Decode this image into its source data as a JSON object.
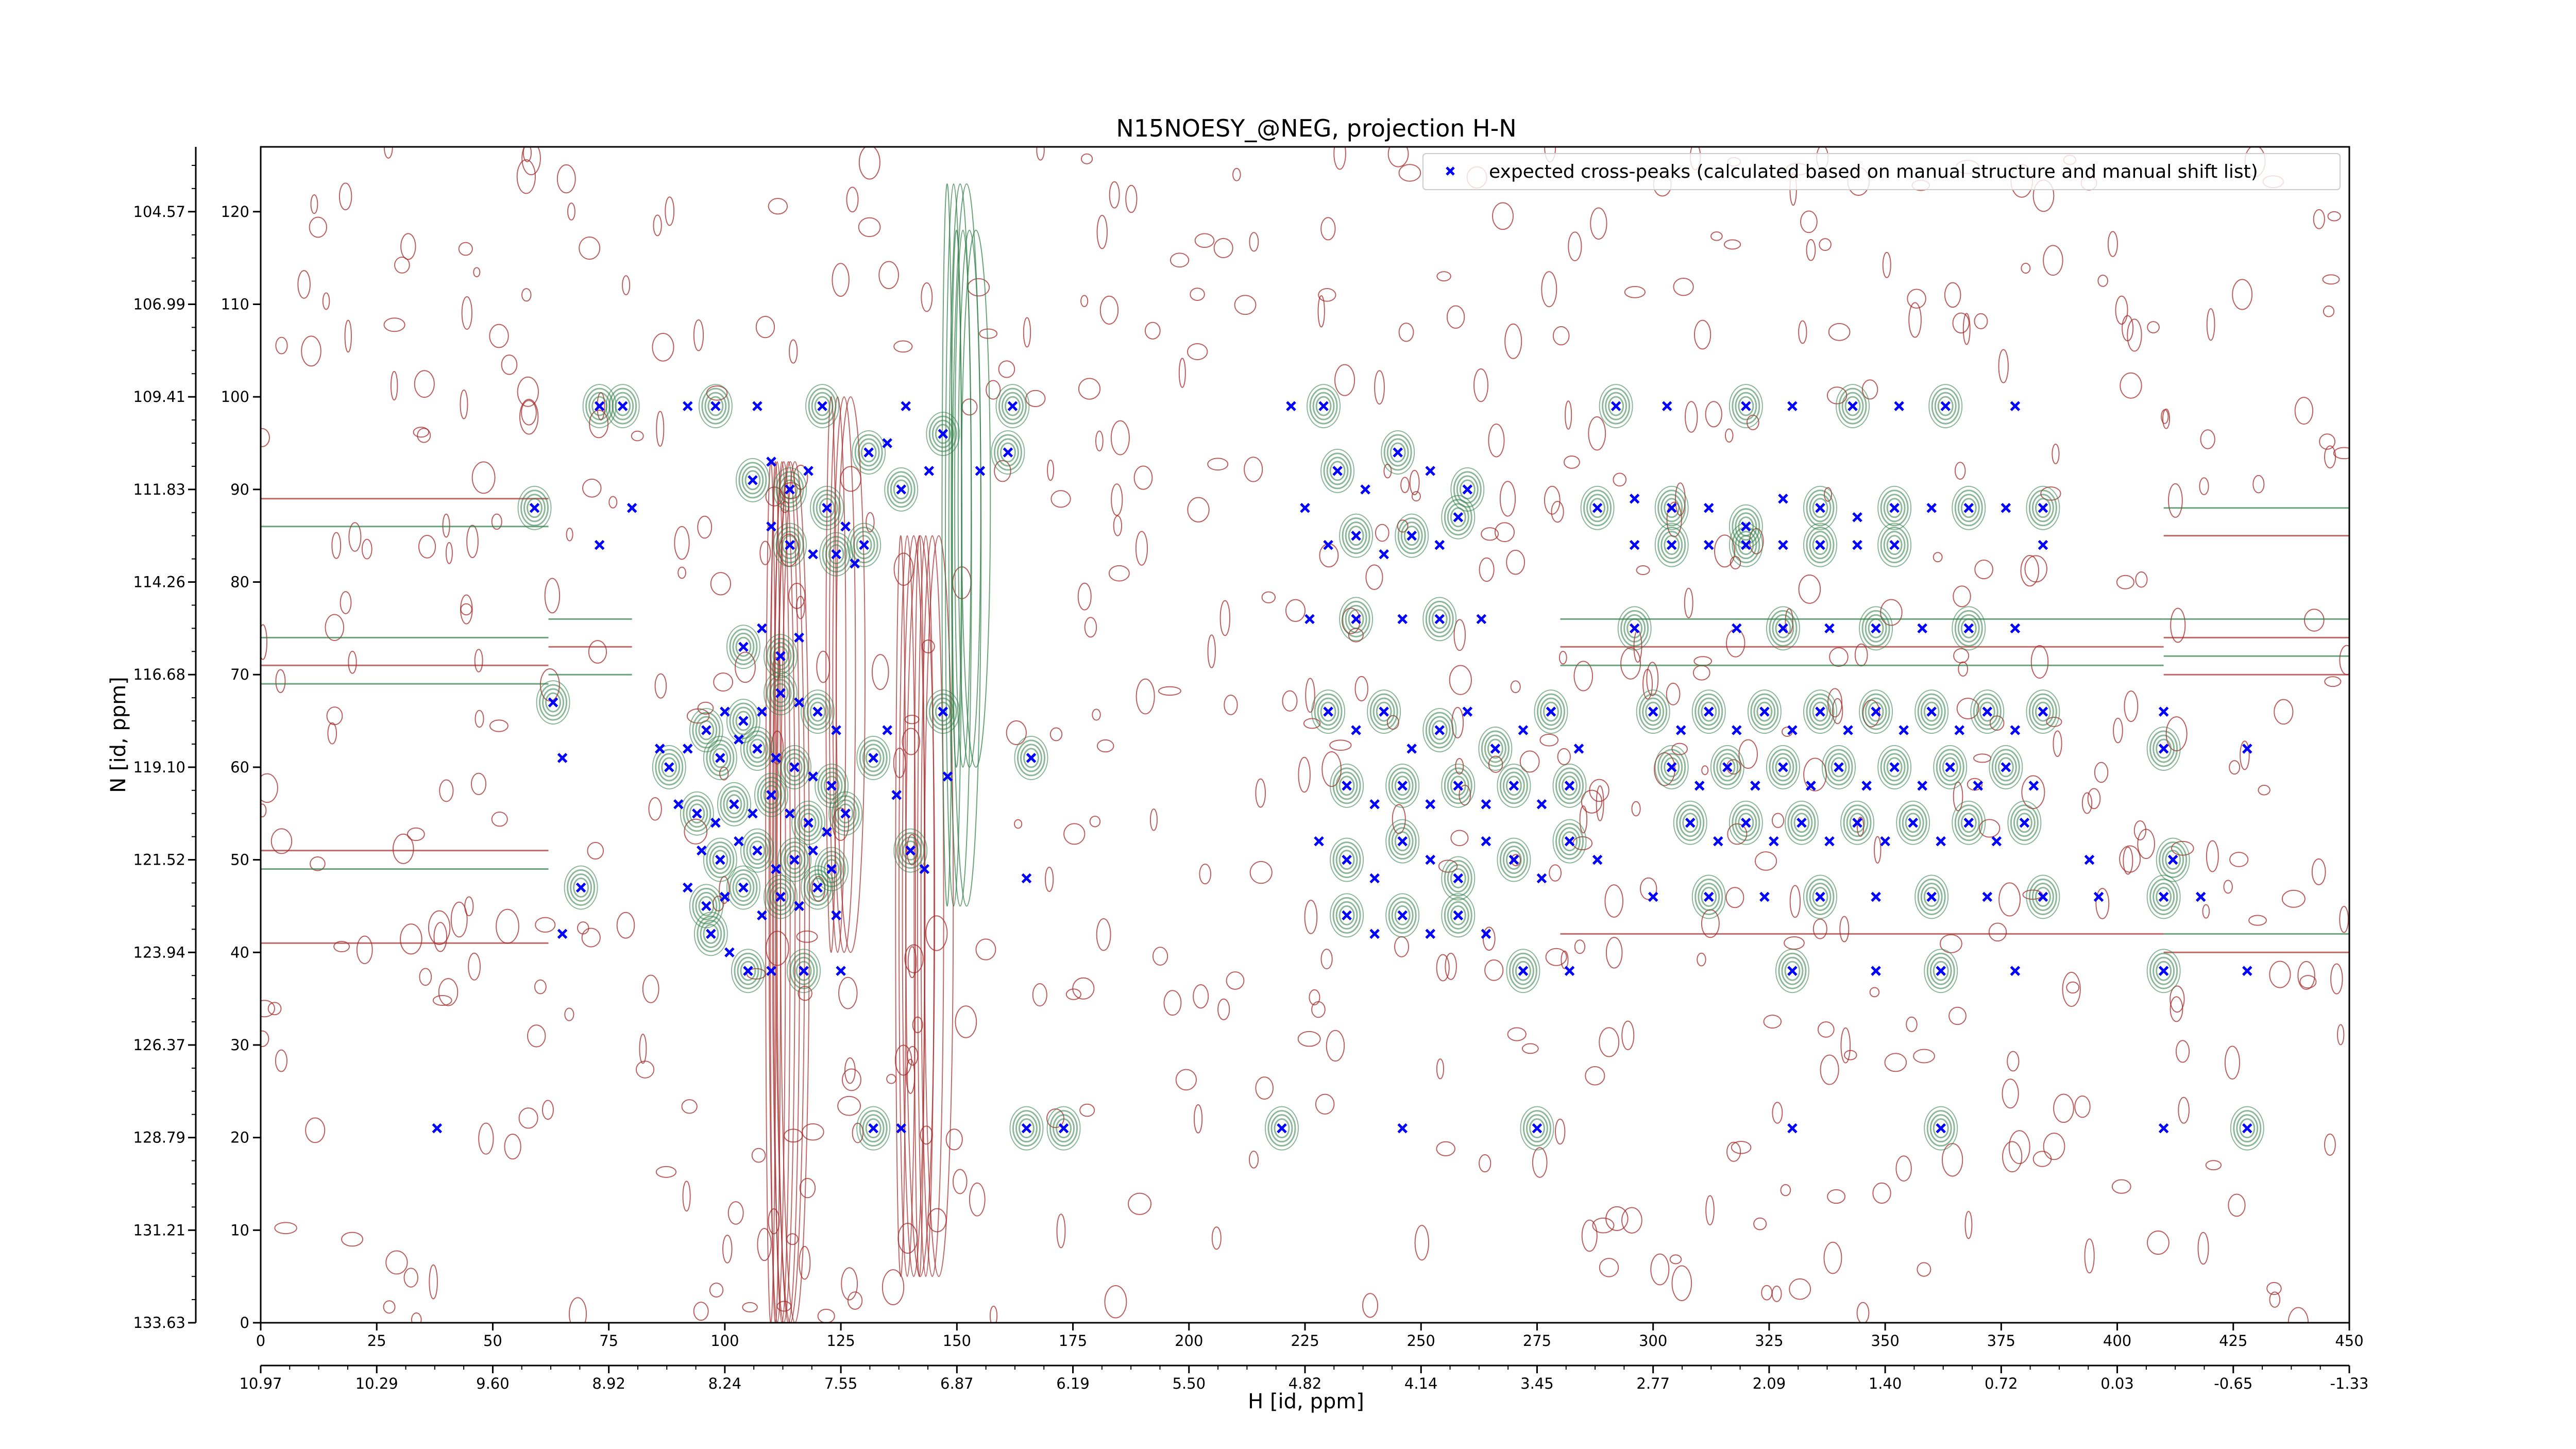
{
  "chart_data": {
    "type": "scatter",
    "title": "N15NOESY_@NEG, projection H-N",
    "xlabel": "H [id, ppm]",
    "ylabel": "N [id, ppm]",
    "xlim": [
      0,
      450
    ],
    "ylim": [
      0,
      127
    ],
    "x_index_ticks": [
      "0",
      "25",
      "50",
      "75",
      "100",
      "125",
      "150",
      "175",
      "200",
      "225",
      "250",
      "275",
      "300",
      "325",
      "350",
      "375",
      "400",
      "425",
      "450"
    ],
    "x_ppm_ticks": [
      "10.97",
      "10.29",
      "9.60",
      "8.92",
      "8.24",
      "7.55",
      "6.87",
      "6.19",
      "5.50",
      "4.82",
      "4.14",
      "3.45",
      "2.77",
      "2.09",
      "1.40",
      "0.72",
      "0.03",
      "-0.65",
      "-1.33"
    ],
    "y_index_ticks": [
      "0",
      "10",
      "20",
      "30",
      "40",
      "50",
      "60",
      "70",
      "80",
      "90",
      "100",
      "110",
      "120"
    ],
    "y_ppm_ticks": [
      "133.63",
      "131.21",
      "128.79",
      "126.37",
      "123.94",
      "121.52",
      "119.10",
      "116.68",
      "114.26",
      "111.83",
      "109.41",
      "106.99",
      "104.57"
    ],
    "legend": {
      "position": "top-right",
      "entries": [
        {
          "label": "expected cross-peaks (calculated based on manual structure and manual shift list)",
          "color": "#0000ff",
          "marker": "x"
        }
      ]
    },
    "colors": {
      "expected_peaks": "#0000ff",
      "positive_contours": "#2e7d45",
      "negative_contours": "#a52a2a"
    },
    "series": [
      {
        "name": "expected cross-peaks (calculated based on manual structure and manual shift list)",
        "points": [
          [
            59,
            88
          ],
          [
            73,
            84
          ],
          [
            73,
            99
          ],
          [
            80,
            88
          ],
          [
            63,
            67
          ],
          [
            65,
            61
          ],
          [
            69,
            47
          ],
          [
            65,
            42
          ],
          [
            78,
            99
          ],
          [
            92,
            99
          ],
          [
            98,
            99
          ],
          [
            107,
            99
          ],
          [
            121,
            99
          ],
          [
            139,
            99
          ],
          [
            162,
            99
          ],
          [
            86,
            62
          ],
          [
            88,
            60
          ],
          [
            92,
            62
          ],
          [
            96,
            64
          ],
          [
            100,
            66
          ],
          [
            104,
            65
          ],
          [
            108,
            66
          ],
          [
            112,
            68
          ],
          [
            116,
            67
          ],
          [
            120,
            66
          ],
          [
            124,
            64
          ],
          [
            99,
            61
          ],
          [
            103,
            63
          ],
          [
            107,
            62
          ],
          [
            111,
            61
          ],
          [
            115,
            60
          ],
          [
            119,
            59
          ],
          [
            123,
            58
          ],
          [
            90,
            56
          ],
          [
            94,
            55
          ],
          [
            98,
            54
          ],
          [
            102,
            56
          ],
          [
            106,
            55
          ],
          [
            110,
            57
          ],
          [
            114,
            55
          ],
          [
            118,
            54
          ],
          [
            122,
            53
          ],
          [
            126,
            55
          ],
          [
            95,
            51
          ],
          [
            99,
            50
          ],
          [
            103,
            52
          ],
          [
            107,
            51
          ],
          [
            111,
            49
          ],
          [
            115,
            50
          ],
          [
            119,
            51
          ],
          [
            123,
            49
          ],
          [
            92,
            47
          ],
          [
            96,
            45
          ],
          [
            100,
            46
          ],
          [
            104,
            47
          ],
          [
            108,
            44
          ],
          [
            112,
            46
          ],
          [
            116,
            45
          ],
          [
            120,
            47
          ],
          [
            124,
            44
          ],
          [
            97,
            42
          ],
          [
            101,
            40
          ],
          [
            105,
            38
          ],
          [
            110,
            38
          ],
          [
            117,
            38
          ],
          [
            125,
            38
          ],
          [
            104,
            73
          ],
          [
            108,
            75
          ],
          [
            112,
            72
          ],
          [
            116,
            74
          ],
          [
            106,
            91
          ],
          [
            110,
            93
          ],
          [
            114,
            90
          ],
          [
            118,
            92
          ],
          [
            122,
            88
          ],
          [
            126,
            86
          ],
          [
            130,
            84
          ],
          [
            110,
            86
          ],
          [
            114,
            84
          ],
          [
            119,
            83
          ],
          [
            124,
            83
          ],
          [
            128,
            82
          ],
          [
            138,
            90
          ],
          [
            144,
            92
          ],
          [
            147,
            96
          ],
          [
            155,
            92
          ],
          [
            161,
            94
          ],
          [
            135,
            95
          ],
          [
            131,
            94
          ],
          [
            137,
            57
          ],
          [
            140,
            51
          ],
          [
            143,
            49
          ],
          [
            132,
            61
          ],
          [
            135,
            64
          ],
          [
            147,
            66
          ],
          [
            148,
            59
          ],
          [
            166,
            61
          ],
          [
            165,
            48
          ],
          [
            132,
            21
          ],
          [
            138,
            21
          ],
          [
            165,
            21
          ],
          [
            222,
            99
          ],
          [
            229,
            99
          ],
          [
            225,
            88
          ],
          [
            232,
            92
          ],
          [
            238,
            90
          ],
          [
            245,
            94
          ],
          [
            252,
            92
          ],
          [
            260,
            90
          ],
          [
            230,
            84
          ],
          [
            236,
            85
          ],
          [
            242,
            83
          ],
          [
            248,
            85
          ],
          [
            254,
            84
          ],
          [
            258,
            87
          ],
          [
            226,
            76
          ],
          [
            236,
            76
          ],
          [
            246,
            76
          ],
          [
            254,
            76
          ],
          [
            263,
            76
          ],
          [
            230,
            66
          ],
          [
            236,
            64
          ],
          [
            242,
            66
          ],
          [
            248,
            62
          ],
          [
            254,
            64
          ],
          [
            260,
            66
          ],
          [
            266,
            62
          ],
          [
            272,
            64
          ],
          [
            278,
            66
          ],
          [
            284,
            62
          ],
          [
            234,
            58
          ],
          [
            240,
            56
          ],
          [
            246,
            58
          ],
          [
            252,
            56
          ],
          [
            258,
            58
          ],
          [
            264,
            56
          ],
          [
            270,
            58
          ],
          [
            276,
            56
          ],
          [
            282,
            58
          ],
          [
            228,
            52
          ],
          [
            234,
            50
          ],
          [
            240,
            48
          ],
          [
            246,
            52
          ],
          [
            252,
            50
          ],
          [
            258,
            48
          ],
          [
            264,
            52
          ],
          [
            270,
            50
          ],
          [
            276,
            48
          ],
          [
            282,
            52
          ],
          [
            288,
            50
          ],
          [
            234,
            44
          ],
          [
            240,
            42
          ],
          [
            246,
            44
          ],
          [
            252,
            42
          ],
          [
            258,
            44
          ],
          [
            264,
            42
          ],
          [
            272,
            38
          ],
          [
            282,
            38
          ],
          [
            292,
            99
          ],
          [
            303,
            99
          ],
          [
            320,
            99
          ],
          [
            330,
            99
          ],
          [
            343,
            99
          ],
          [
            353,
            99
          ],
          [
            363,
            99
          ],
          [
            378,
            99
          ],
          [
            288,
            88
          ],
          [
            296,
            89
          ],
          [
            304,
            88
          ],
          [
            312,
            88
          ],
          [
            320,
            86
          ],
          [
            328,
            89
          ],
          [
            336,
            88
          ],
          [
            344,
            87
          ],
          [
            352,
            88
          ],
          [
            360,
            88
          ],
          [
            368,
            88
          ],
          [
            376,
            88
          ],
          [
            384,
            88
          ],
          [
            296,
            84
          ],
          [
            304,
            84
          ],
          [
            312,
            84
          ],
          [
            320,
            84
          ],
          [
            328,
            84
          ],
          [
            336,
            84
          ],
          [
            344,
            84
          ],
          [
            352,
            84
          ],
          [
            384,
            84
          ],
          [
            296,
            75
          ],
          [
            318,
            75
          ],
          [
            328,
            75
          ],
          [
            338,
            75
          ],
          [
            348,
            75
          ],
          [
            358,
            75
          ],
          [
            368,
            75
          ],
          [
            378,
            75
          ],
          [
            300,
            66
          ],
          [
            306,
            64
          ],
          [
            312,
            66
          ],
          [
            318,
            64
          ],
          [
            324,
            66
          ],
          [
            330,
            64
          ],
          [
            336,
            66
          ],
          [
            342,
            64
          ],
          [
            348,
            66
          ],
          [
            354,
            64
          ],
          [
            360,
            66
          ],
          [
            366,
            64
          ],
          [
            372,
            66
          ],
          [
            378,
            64
          ],
          [
            384,
            66
          ],
          [
            410,
            66
          ],
          [
            304,
            60
          ],
          [
            310,
            58
          ],
          [
            316,
            60
          ],
          [
            322,
            58
          ],
          [
            328,
            60
          ],
          [
            334,
            58
          ],
          [
            340,
            60
          ],
          [
            346,
            58
          ],
          [
            352,
            60
          ],
          [
            358,
            58
          ],
          [
            364,
            60
          ],
          [
            370,
            58
          ],
          [
            376,
            60
          ],
          [
            382,
            58
          ],
          [
            410,
            62
          ],
          [
            428,
            62
          ],
          [
            308,
            54
          ],
          [
            314,
            52
          ],
          [
            320,
            54
          ],
          [
            326,
            52
          ],
          [
            332,
            54
          ],
          [
            338,
            52
          ],
          [
            344,
            54
          ],
          [
            350,
            52
          ],
          [
            356,
            54
          ],
          [
            362,
            52
          ],
          [
            368,
            54
          ],
          [
            374,
            52
          ],
          [
            380,
            54
          ],
          [
            394,
            50
          ],
          [
            412,
            50
          ],
          [
            300,
            46
          ],
          [
            312,
            46
          ],
          [
            324,
            46
          ],
          [
            336,
            46
          ],
          [
            348,
            46
          ],
          [
            360,
            46
          ],
          [
            372,
            46
          ],
          [
            384,
            46
          ],
          [
            396,
            46
          ],
          [
            410,
            46
          ],
          [
            418,
            46
          ],
          [
            330,
            38
          ],
          [
            348,
            38
          ],
          [
            362,
            38
          ],
          [
            378,
            38
          ],
          [
            410,
            38
          ],
          [
            428,
            38
          ],
          [
            220,
            21
          ],
          [
            246,
            21
          ],
          [
            275,
            21
          ],
          [
            330,
            21
          ],
          [
            362,
            21
          ],
          [
            410,
            21
          ],
          [
            428,
            21
          ],
          [
            38,
            21
          ],
          [
            173,
            21
          ]
        ]
      }
    ]
  }
}
